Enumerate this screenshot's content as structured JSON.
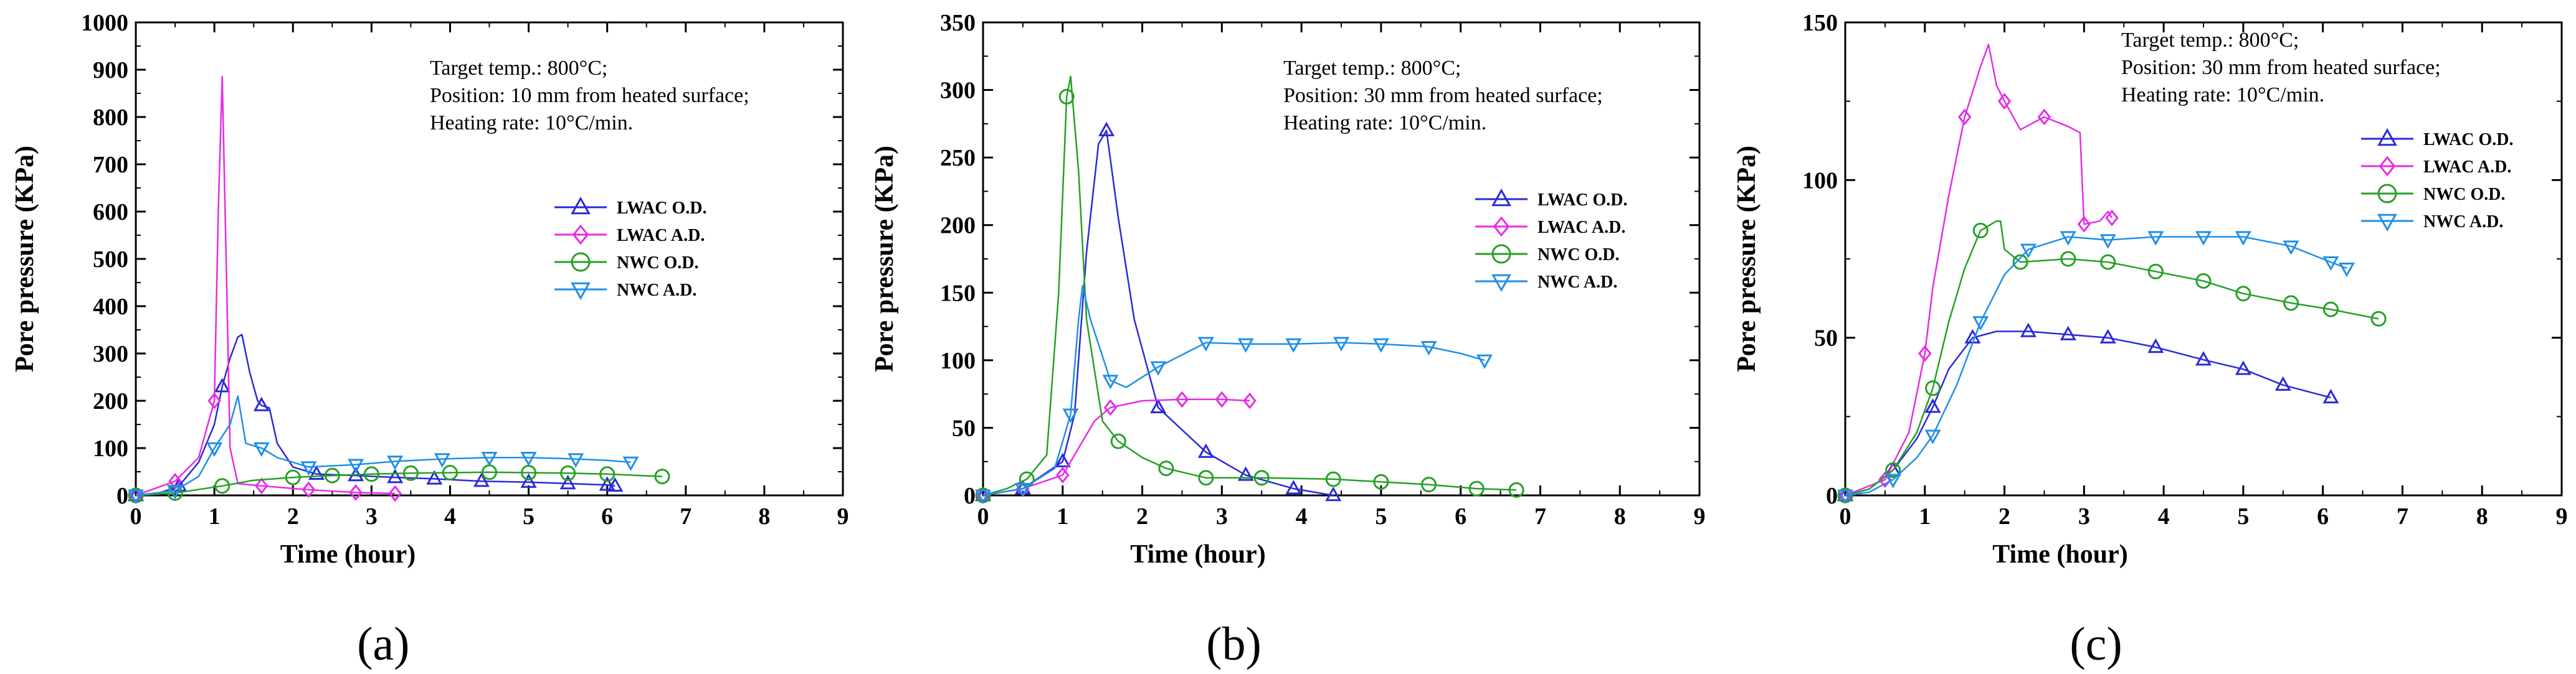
{
  "figure": {
    "series_styles": [
      {
        "name": "LWAC O.D.",
        "color": "#2a2ad8",
        "marker": "triangle-up"
      },
      {
        "name": "LWAC A.D.",
        "color": "#e62be6",
        "marker": "diamond"
      },
      {
        "name": "NWC O.D.",
        "color": "#25a025",
        "marker": "circle"
      },
      {
        "name": "NWC A.D.",
        "color": "#1f8fe8",
        "marker": "triangle-down"
      }
    ]
  },
  "chart_data": [
    {
      "type": "line",
      "panel_label": "(a)",
      "xlabel": "Time (hour)",
      "ylabel": "Pore pressure (KPa)",
      "xlim": [
        0,
        9
      ],
      "ylim": [
        0,
        1000
      ],
      "xticks": [
        0,
        1,
        2,
        3,
        4,
        5,
        6,
        7,
        8,
        9
      ],
      "yticks": [
        0,
        100,
        200,
        300,
        400,
        500,
        600,
        700,
        800,
        900,
        1000
      ],
      "annotation": [
        "Target temp.: 800°C;",
        "Position: 10 mm from heated surface;",
        "Heating rate: 10°C/min."
      ],
      "series": [
        {
          "name": "LWAC O.D.",
          "points": [
            [
              0,
              0
            ],
            [
              0.3,
              5
            ],
            [
              0.55,
              20
            ],
            [
              0.8,
              70
            ],
            [
              1.0,
              150
            ],
            [
              1.1,
              230
            ],
            [
              1.2,
              290
            ],
            [
              1.3,
              335
            ],
            [
              1.35,
              340
            ],
            [
              1.45,
              260
            ],
            [
              1.55,
              200
            ],
            [
              1.6,
              190
            ],
            [
              1.7,
              185
            ],
            [
              1.8,
              110
            ],
            [
              2.0,
              60
            ],
            [
              2.3,
              45
            ],
            [
              2.8,
              42
            ],
            [
              3.3,
              38
            ],
            [
              3.8,
              35
            ],
            [
              4.4,
              30
            ],
            [
              5.0,
              28
            ],
            [
              5.5,
              25
            ],
            [
              6.0,
              22
            ],
            [
              6.1,
              20
            ]
          ]
        },
        {
          "name": "LWAC A.D.",
          "points": [
            [
              0,
              0
            ],
            [
              0.5,
              30
            ],
            [
              0.8,
              80
            ],
            [
              1.0,
              200
            ],
            [
              1.05,
              600
            ],
            [
              1.1,
              885
            ],
            [
              1.15,
              500
            ],
            [
              1.2,
              100
            ],
            [
              1.3,
              25
            ],
            [
              1.6,
              20
            ],
            [
              2.2,
              12
            ],
            [
              2.8,
              6
            ],
            [
              3.3,
              4
            ]
          ]
        },
        {
          "name": "NWC O.D.",
          "points": [
            [
              0,
              0
            ],
            [
              0.5,
              5
            ],
            [
              1.1,
              20
            ],
            [
              1.5,
              32
            ],
            [
              2.0,
              38
            ],
            [
              2.5,
              42
            ],
            [
              3.0,
              45
            ],
            [
              3.5,
              47
            ],
            [
              4.0,
              48
            ],
            [
              4.5,
              49
            ],
            [
              5.0,
              48
            ],
            [
              5.5,
              47
            ],
            [
              6.0,
              45
            ],
            [
              6.7,
              40
            ]
          ]
        },
        {
          "name": "NWC A.D.",
          "points": [
            [
              0,
              0
            ],
            [
              0.5,
              10
            ],
            [
              0.8,
              40
            ],
            [
              1.0,
              100
            ],
            [
              1.2,
              150
            ],
            [
              1.3,
              210
            ],
            [
              1.4,
              110
            ],
            [
              1.6,
              100
            ],
            [
              1.8,
              80
            ],
            [
              2.2,
              60
            ],
            [
              2.8,
              65
            ],
            [
              3.3,
              72
            ],
            [
              3.9,
              77
            ],
            [
              4.5,
              80
            ],
            [
              5.0,
              80
            ],
            [
              5.6,
              77
            ],
            [
              6.0,
              74
            ],
            [
              6.3,
              70
            ]
          ]
        }
      ]
    },
    {
      "type": "line",
      "panel_label": "(b)",
      "xlabel": "Time (hour)",
      "ylabel": "Pore pressure (KPa)",
      "xlim": [
        0,
        9
      ],
      "ylim": [
        0,
        350
      ],
      "xticks": [
        0,
        1,
        2,
        3,
        4,
        5,
        6,
        7,
        8,
        9
      ],
      "yticks": [
        0,
        50,
        100,
        150,
        200,
        250,
        300,
        350
      ],
      "annotation": [
        "Target temp.: 800°C;",
        "Position: 30 mm from heated surface;",
        "Heating rate: 10°C/min."
      ],
      "series": [
        {
          "name": "LWAC O.D.",
          "points": [
            [
              0,
              0
            ],
            [
              0.5,
              5
            ],
            [
              1.0,
              25
            ],
            [
              1.15,
              60
            ],
            [
              1.3,
              180
            ],
            [
              1.45,
              260
            ],
            [
              1.55,
              270
            ],
            [
              1.7,
              205
            ],
            [
              1.9,
              130
            ],
            [
              2.2,
              65
            ],
            [
              2.8,
              32
            ],
            [
              3.3,
              15
            ],
            [
              3.9,
              5
            ],
            [
              4.4,
              0
            ]
          ]
        },
        {
          "name": "LWAC A.D.",
          "points": [
            [
              0,
              0
            ],
            [
              0.5,
              5
            ],
            [
              1.0,
              15
            ],
            [
              1.2,
              35
            ],
            [
              1.4,
              55
            ],
            [
              1.6,
              65
            ],
            [
              2.0,
              70
            ],
            [
              2.5,
              71
            ],
            [
              3.0,
              71
            ],
            [
              3.35,
              70
            ]
          ]
        },
        {
          "name": "NWC O.D.",
          "points": [
            [
              0,
              0
            ],
            [
              0.3,
              5
            ],
            [
              0.55,
              12
            ],
            [
              0.8,
              30
            ],
            [
              0.95,
              150
            ],
            [
              1.05,
              295
            ],
            [
              1.1,
              310
            ],
            [
              1.2,
              240
            ],
            [
              1.3,
              130
            ],
            [
              1.5,
              55
            ],
            [
              1.7,
              40
            ],
            [
              2.0,
              28
            ],
            [
              2.3,
              20
            ],
            [
              2.8,
              13
            ],
            [
              3.5,
              13
            ],
            [
              4.4,
              12
            ],
            [
              5.0,
              10
            ],
            [
              5.6,
              8
            ],
            [
              6.2,
              5
            ],
            [
              6.7,
              4
            ]
          ]
        },
        {
          "name": "NWC A.D.",
          "points": [
            [
              0,
              0
            ],
            [
              0.5,
              5
            ],
            [
              0.9,
              20
            ],
            [
              1.1,
              60
            ],
            [
              1.2,
              130
            ],
            [
              1.25,
              155
            ],
            [
              1.35,
              130
            ],
            [
              1.6,
              85
            ],
            [
              1.8,
              80
            ],
            [
              2.2,
              95
            ],
            [
              2.8,
              113
            ],
            [
              3.3,
              112
            ],
            [
              3.9,
              112
            ],
            [
              4.5,
              113
            ],
            [
              5.0,
              112
            ],
            [
              5.6,
              110
            ],
            [
              6.0,
              105
            ],
            [
              6.3,
              100
            ]
          ]
        }
      ]
    },
    {
      "type": "line",
      "panel_label": "(c)",
      "xlabel": "Time (hour)",
      "ylabel": "Pore pressure (KPa)",
      "xlim": [
        0,
        9
      ],
      "ylim": [
        0,
        150
      ],
      "xticks": [
        0,
        1,
        2,
        3,
        4,
        5,
        6,
        7,
        8,
        9
      ],
      "yticks": [
        0,
        50,
        100,
        150
      ],
      "annotation": [
        "Target temp.: 800°C;",
        "Position: 30 mm from heated surface;",
        "Heating rate: 10°C/min."
      ],
      "series": [
        {
          "name": "LWAC O.D.",
          "points": [
            [
              0,
              0
            ],
            [
              0.3,
              2
            ],
            [
              0.6,
              8
            ],
            [
              0.9,
              18
            ],
            [
              1.1,
              28
            ],
            [
              1.3,
              40
            ],
            [
              1.6,
              50
            ],
            [
              1.9,
              52
            ],
            [
              2.3,
              52
            ],
            [
              2.8,
              51
            ],
            [
              3.3,
              50
            ],
            [
              3.9,
              47
            ],
            [
              4.5,
              43
            ],
            [
              5.0,
              40
            ],
            [
              5.5,
              35
            ],
            [
              6.1,
              31
            ]
          ]
        },
        {
          "name": "LWAC A.D.",
          "points": [
            [
              0,
              0
            ],
            [
              0.5,
              5
            ],
            [
              0.8,
              20
            ],
            [
              1.0,
              45
            ],
            [
              1.1,
              66
            ],
            [
              1.3,
              95
            ],
            [
              1.5,
              120
            ],
            [
              1.7,
              136
            ],
            [
              1.8,
              143
            ],
            [
              1.9,
              130
            ],
            [
              2.0,
              125
            ],
            [
              2.2,
              116
            ],
            [
              2.5,
              120
            ],
            [
              2.8,
              117
            ],
            [
              2.95,
              115
            ],
            [
              3.0,
              86
            ],
            [
              3.2,
              87
            ],
            [
              3.3,
              90
            ],
            [
              3.35,
              88
            ]
          ]
        },
        {
          "name": "NWC O.D.",
          "points": [
            [
              0,
              0
            ],
            [
              0.3,
              2
            ],
            [
              0.6,
              8
            ],
            [
              0.9,
              20
            ],
            [
              1.1,
              34
            ],
            [
              1.3,
              55
            ],
            [
              1.5,
              72
            ],
            [
              1.7,
              84
            ],
            [
              1.9,
              87
            ],
            [
              1.95,
              87
            ],
            [
              2.0,
              78
            ],
            [
              2.2,
              74
            ],
            [
              2.8,
              75
            ],
            [
              3.3,
              74
            ],
            [
              3.9,
              71
            ],
            [
              4.5,
              68
            ],
            [
              5.0,
              64
            ],
            [
              5.6,
              61
            ],
            [
              6.1,
              59
            ],
            [
              6.7,
              56
            ]
          ]
        },
        {
          "name": "NWC A.D.",
          "points": [
            [
              0,
              0
            ],
            [
              0.3,
              1
            ],
            [
              0.6,
              5
            ],
            [
              0.9,
              12
            ],
            [
              1.1,
              19
            ],
            [
              1.4,
              35
            ],
            [
              1.7,
              55
            ],
            [
              2.0,
              70
            ],
            [
              2.3,
              78
            ],
            [
              2.8,
              82
            ],
            [
              3.3,
              81
            ],
            [
              3.9,
              82
            ],
            [
              4.5,
              82
            ],
            [
              5.0,
              82
            ],
            [
              5.6,
              79
            ],
            [
              6.1,
              74
            ],
            [
              6.3,
              72
            ]
          ]
        }
      ]
    }
  ]
}
